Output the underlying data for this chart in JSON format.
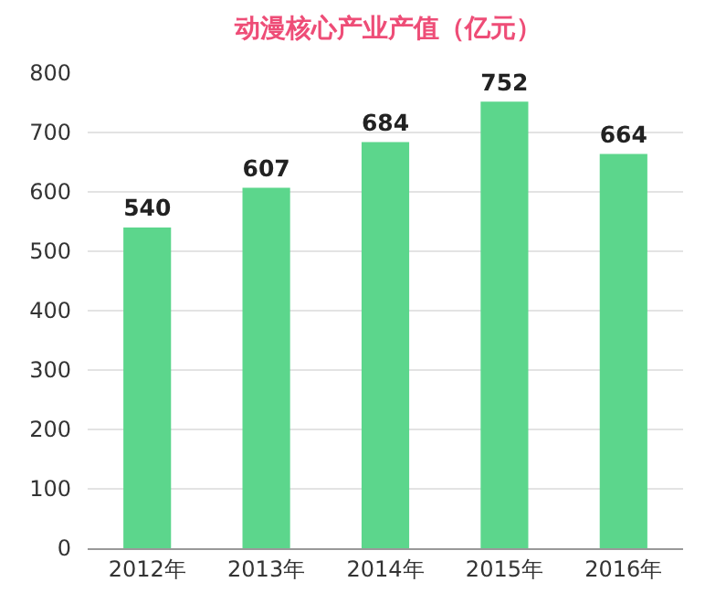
{
  "chart_data": {
    "type": "bar",
    "title": "动漫核心产业产值（亿元）",
    "categories": [
      "2012年",
      "2013年",
      "2014年",
      "2015年",
      "2016年"
    ],
    "values": [
      540,
      607,
      684,
      752,
      664
    ],
    "color": "#5cd68c",
    "ylim": [
      0,
      800
    ],
    "yticks": [
      0,
      100,
      200,
      300,
      400,
      500,
      600,
      700,
      800
    ],
    "grid": "y",
    "data_labels": true
  }
}
